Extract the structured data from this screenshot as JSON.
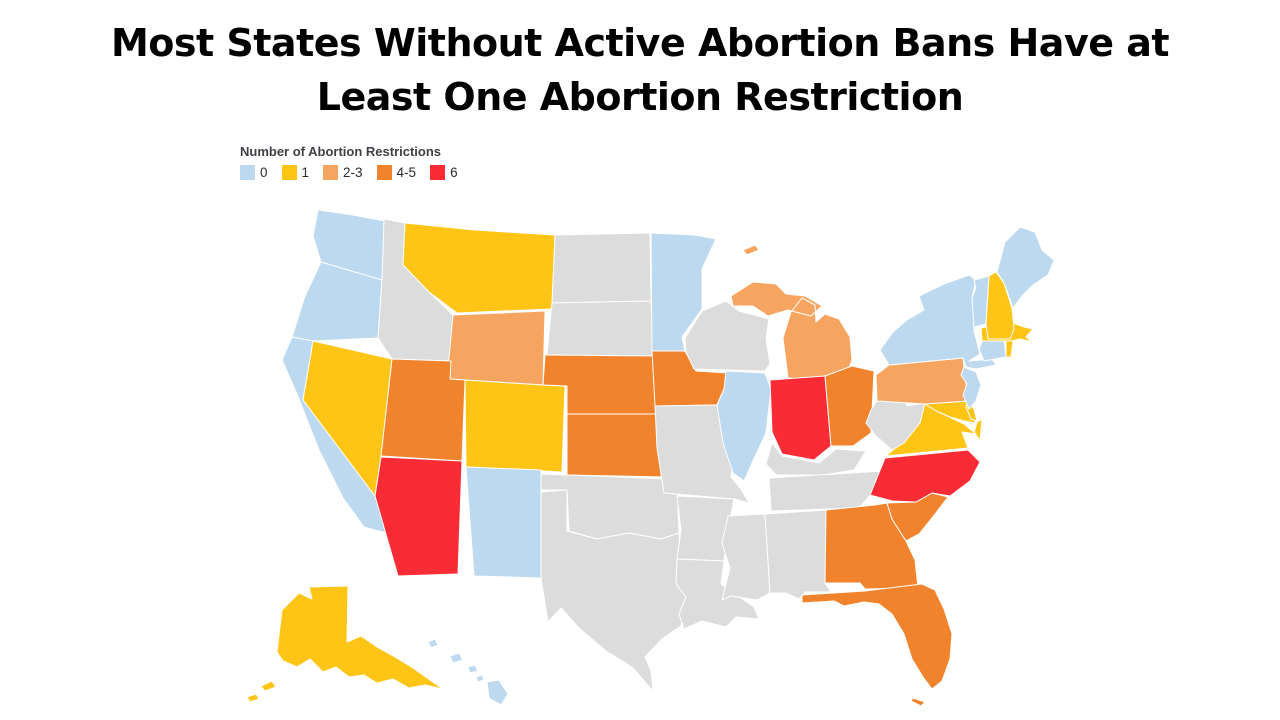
{
  "title": "Most States Without Active Abortion Bans Have at Least One Abortion Restriction",
  "chart_data": {
    "type": "choropleth",
    "title": "Most States Without Active Abortion Bans Have at Least One Abortion Restriction",
    "legend_title": "Number of Abortion Restrictions",
    "legend_position": "top-left",
    "categories": [
      {
        "label": "0",
        "color": "#BDD9EF"
      },
      {
        "label": "1",
        "color": "#FFC516"
      },
      {
        "label": "2-3",
        "color": "#F5A55F"
      },
      {
        "label": "4-5",
        "color": "#F0832B"
      },
      {
        "label": "6",
        "color": "#F92B35"
      }
    ],
    "no_data_color": "#DCDCDC",
    "border_color": "#FFFFFF",
    "states": [
      {
        "id": "WA",
        "name": "Washington",
        "restrictions": "0"
      },
      {
        "id": "OR",
        "name": "Oregon",
        "restrictions": "0"
      },
      {
        "id": "CA",
        "name": "California",
        "restrictions": "0"
      },
      {
        "id": "NV",
        "name": "Nevada",
        "restrictions": "1"
      },
      {
        "id": "ID",
        "name": "Idaho",
        "restrictions": null
      },
      {
        "id": "MT",
        "name": "Montana",
        "restrictions": "1"
      },
      {
        "id": "WY",
        "name": "Wyoming",
        "restrictions": "2-3"
      },
      {
        "id": "UT",
        "name": "Utah",
        "restrictions": "4-5"
      },
      {
        "id": "CO",
        "name": "Colorado",
        "restrictions": "1"
      },
      {
        "id": "AZ",
        "name": "Arizona",
        "restrictions": "6"
      },
      {
        "id": "NM",
        "name": "New Mexico",
        "restrictions": "0"
      },
      {
        "id": "ND",
        "name": "North Dakota",
        "restrictions": null
      },
      {
        "id": "SD",
        "name": "South Dakota",
        "restrictions": null
      },
      {
        "id": "NE",
        "name": "Nebraska",
        "restrictions": "4-5"
      },
      {
        "id": "KS",
        "name": "Kansas",
        "restrictions": "4-5"
      },
      {
        "id": "OK",
        "name": "Oklahoma",
        "restrictions": null
      },
      {
        "id": "TX",
        "name": "Texas",
        "restrictions": null
      },
      {
        "id": "MN",
        "name": "Minnesota",
        "restrictions": "0"
      },
      {
        "id": "IA",
        "name": "Iowa",
        "restrictions": "4-5"
      },
      {
        "id": "MO",
        "name": "Missouri",
        "restrictions": null
      },
      {
        "id": "AR",
        "name": "Arkansas",
        "restrictions": null
      },
      {
        "id": "LA",
        "name": "Louisiana",
        "restrictions": null
      },
      {
        "id": "WI",
        "name": "Wisconsin",
        "restrictions": null
      },
      {
        "id": "IL",
        "name": "Illinois",
        "restrictions": "0"
      },
      {
        "id": "MI",
        "name": "Michigan",
        "restrictions": "2-3"
      },
      {
        "id": "IN",
        "name": "Indiana",
        "restrictions": "6"
      },
      {
        "id": "OH",
        "name": "Ohio",
        "restrictions": "4-5"
      },
      {
        "id": "KY",
        "name": "Kentucky",
        "restrictions": null
      },
      {
        "id": "TN",
        "name": "Tennessee",
        "restrictions": null
      },
      {
        "id": "MS",
        "name": "Mississippi",
        "restrictions": null
      },
      {
        "id": "AL",
        "name": "Alabama",
        "restrictions": null
      },
      {
        "id": "GA",
        "name": "Georgia",
        "restrictions": "4-5"
      },
      {
        "id": "SC",
        "name": "South Carolina",
        "restrictions": "4-5"
      },
      {
        "id": "NC",
        "name": "North Carolina",
        "restrictions": "6"
      },
      {
        "id": "FL",
        "name": "Florida",
        "restrictions": "4-5"
      },
      {
        "id": "VA",
        "name": "Virginia",
        "restrictions": "1"
      },
      {
        "id": "WV",
        "name": "West Virginia",
        "restrictions": null
      },
      {
        "id": "MD",
        "name": "Maryland",
        "restrictions": "1"
      },
      {
        "id": "DE",
        "name": "Delaware",
        "restrictions": "1"
      },
      {
        "id": "PA",
        "name": "Pennsylvania",
        "restrictions": "2-3"
      },
      {
        "id": "NJ",
        "name": "New Jersey",
        "restrictions": "0"
      },
      {
        "id": "NY",
        "name": "New York",
        "restrictions": "0"
      },
      {
        "id": "CT",
        "name": "Connecticut",
        "restrictions": "0"
      },
      {
        "id": "RI",
        "name": "Rhode Island",
        "restrictions": "1"
      },
      {
        "id": "MA",
        "name": "Massachusetts",
        "restrictions": "1"
      },
      {
        "id": "VT",
        "name": "Vermont",
        "restrictions": "0"
      },
      {
        "id": "NH",
        "name": "New Hampshire",
        "restrictions": "1"
      },
      {
        "id": "ME",
        "name": "Maine",
        "restrictions": "0"
      },
      {
        "id": "AK",
        "name": "Alaska",
        "restrictions": "1"
      },
      {
        "id": "HI",
        "name": "Hawaii",
        "restrictions": "0"
      }
    ]
  }
}
